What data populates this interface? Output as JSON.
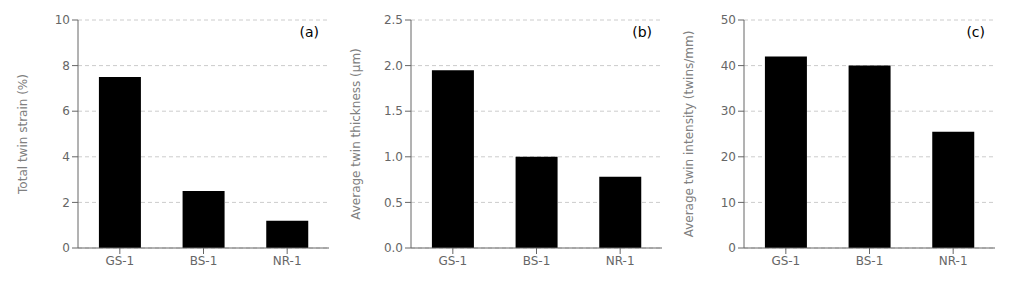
{
  "chart_data": [
    {
      "type": "bar",
      "categories": [
        "GS-1",
        "BS-1",
        "NR-1"
      ],
      "values": [
        7.5,
        2.5,
        1.2
      ],
      "color": "#000000",
      "ylabel": "Total twin strain (%)",
      "ylim": [
        0,
        10
      ],
      "yticks": [
        0,
        2,
        4,
        6,
        8,
        10
      ],
      "grid": true,
      "annotation": "(a)"
    },
    {
      "type": "bar",
      "categories": [
        "GS-1",
        "BS-1",
        "NR-1"
      ],
      "values": [
        1.95,
        1.0,
        0.78
      ],
      "color": "#000000",
      "ylabel": "Average twin thickness (μm)",
      "ylim": [
        0,
        2.5
      ],
      "yticks": [
        {
          "value": 0,
          "label": "0.0"
        },
        0.5,
        {
          "value": 1.0,
          "label": "1.0"
        },
        1.5,
        {
          "value": 2.0,
          "label": "2.0"
        },
        2.5
      ],
      "grid": true,
      "annotation": "(b)"
    },
    {
      "type": "bar",
      "categories": [
        "GS-1",
        "BS-1",
        "NR-1"
      ],
      "values": [
        42,
        40,
        25.5
      ],
      "color": "#000000",
      "ylabel": "Average twin intensity (twins/mm)",
      "ylim": [
        0,
        50
      ],
      "yticks": [
        0,
        10,
        20,
        30,
        40,
        50
      ],
      "grid": true,
      "annotation": "(c)"
    }
  ]
}
